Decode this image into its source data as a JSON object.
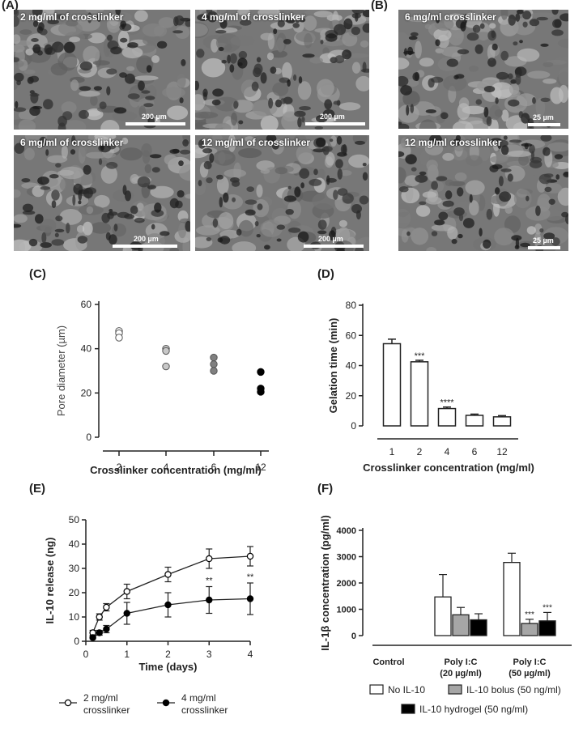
{
  "panels": {
    "A": "(A)",
    "B": "(B)",
    "C": "(C)",
    "D": "(D)",
    "E": "(E)",
    "F": "(F)"
  },
  "micrographs": [
    {
      "caption": "2 mg/ml of crosslinker",
      "scale": "200 µm"
    },
    {
      "caption": "4 mg/ml of crosslinker",
      "scale": "200 µm"
    },
    {
      "caption": "6 mg/ml of crosslinker",
      "scale": "200 µm"
    },
    {
      "caption": "12 mg/ml of crosslinker",
      "scale": "200 µm"
    },
    {
      "caption": "6 mg/ml crosslinker",
      "scale": "25 µm"
    },
    {
      "caption": "12 mg/ml crosslinker",
      "scale": "25 µm"
    }
  ],
  "chart_data": [
    {
      "id": "C",
      "type": "scatter",
      "xlabel": "Crosslinker concentration (mg/ml)",
      "ylabel": "Pore diameter (µm)",
      "categories": [
        "2",
        "4",
        "6",
        "12"
      ],
      "ylim": [
        0,
        60
      ],
      "yticks": [
        0,
        20,
        40,
        60
      ],
      "groups": [
        {
          "category": "2",
          "values": [
            48,
            47,
            45
          ],
          "color": "#ffffff"
        },
        {
          "category": "4",
          "values": [
            40,
            39,
            32
          ],
          "color": "#c8c8c8"
        },
        {
          "category": "6",
          "values": [
            36,
            33,
            30
          ],
          "color": "#808080"
        },
        {
          "category": "12",
          "values": [
            29.5,
            22,
            20.5
          ],
          "color": "#000000"
        }
      ]
    },
    {
      "id": "D",
      "type": "bar",
      "xlabel": "Crosslinker concentration (mg/ml)",
      "ylabel": "Gelation time (min)",
      "categories": [
        "1",
        "2",
        "4",
        "6",
        "12"
      ],
      "values": [
        54.5,
        42.5,
        11.5,
        7,
        6
      ],
      "errors": [
        3,
        1,
        1,
        0.8,
        0.8
      ],
      "annotations": [
        "",
        "***",
        "****",
        "",
        ""
      ],
      "ylim": [
        0,
        80
      ],
      "yticks": [
        0,
        20,
        40,
        60,
        80
      ]
    },
    {
      "id": "E",
      "type": "line",
      "xlabel": "Time (days)",
      "ylabel": "IL-10 release (ng)",
      "xlim": [
        0,
        4
      ],
      "xticks": [
        0,
        1,
        2,
        3,
        4
      ],
      "ylim": [
        0,
        50
      ],
      "yticks": [
        0,
        10,
        20,
        30,
        40,
        50
      ],
      "series": [
        {
          "name": "2 mg/ml crosslinker",
          "marker": "open",
          "x": [
            0.17,
            0.33,
            0.5,
            1,
            2,
            3,
            4
          ],
          "y": [
            3.5,
            10,
            14,
            20.5,
            27.5,
            34,
            35
          ],
          "err": [
            1,
            1.3,
            1.5,
            3,
            3,
            4,
            4
          ]
        },
        {
          "name": "4 mg/ml crosslinker",
          "marker": "filled",
          "x": [
            0.17,
            0.33,
            0.5,
            1,
            2,
            3,
            4
          ],
          "y": [
            1.5,
            3.5,
            5,
            11.5,
            15,
            17,
            17.5
          ],
          "err": [
            0.5,
            1,
            1.5,
            4.5,
            5,
            5.5,
            6.5
          ]
        }
      ],
      "annotations": [
        {
          "x": 3,
          "text": "**"
        },
        {
          "x": 4,
          "text": "**"
        }
      ]
    },
    {
      "id": "F",
      "type": "bar",
      "ylabel": "IL-1β concentration (pg/ml)",
      "groups": [
        "Control",
        "Poly I:C (20 µg/ml)",
        "Poly I:C (50 µg/ml)"
      ],
      "group_lines": [
        [
          "Control"
        ],
        [
          "Poly I:C",
          "(20 µg/ml)"
        ],
        [
          "Poly I:C",
          "(50 µg/ml)"
        ]
      ],
      "ylim": [
        0,
        4000
      ],
      "yticks": [
        0,
        1000,
        2000,
        3000,
        4000
      ],
      "series": [
        {
          "name": "No IL-10",
          "color": "#ffffff",
          "values": [
            0,
            1470,
            2780
          ],
          "errors": [
            0,
            850,
            350
          ],
          "annotations": [
            "",
            "",
            ""
          ]
        },
        {
          "name": "IL-10 bolus (50 ng/ml)",
          "color": "#a6a6a6",
          "values": [
            0,
            790,
            460
          ],
          "errors": [
            0,
            280,
            160
          ],
          "annotations": [
            "",
            "",
            "***"
          ]
        },
        {
          "name": "IL-10 hydrogel (50 ng/ml)",
          "color": "#000000",
          "values": [
            0,
            600,
            560
          ],
          "errors": [
            0,
            230,
            320
          ],
          "annotations": [
            "",
            "",
            "***"
          ]
        }
      ]
    }
  ]
}
